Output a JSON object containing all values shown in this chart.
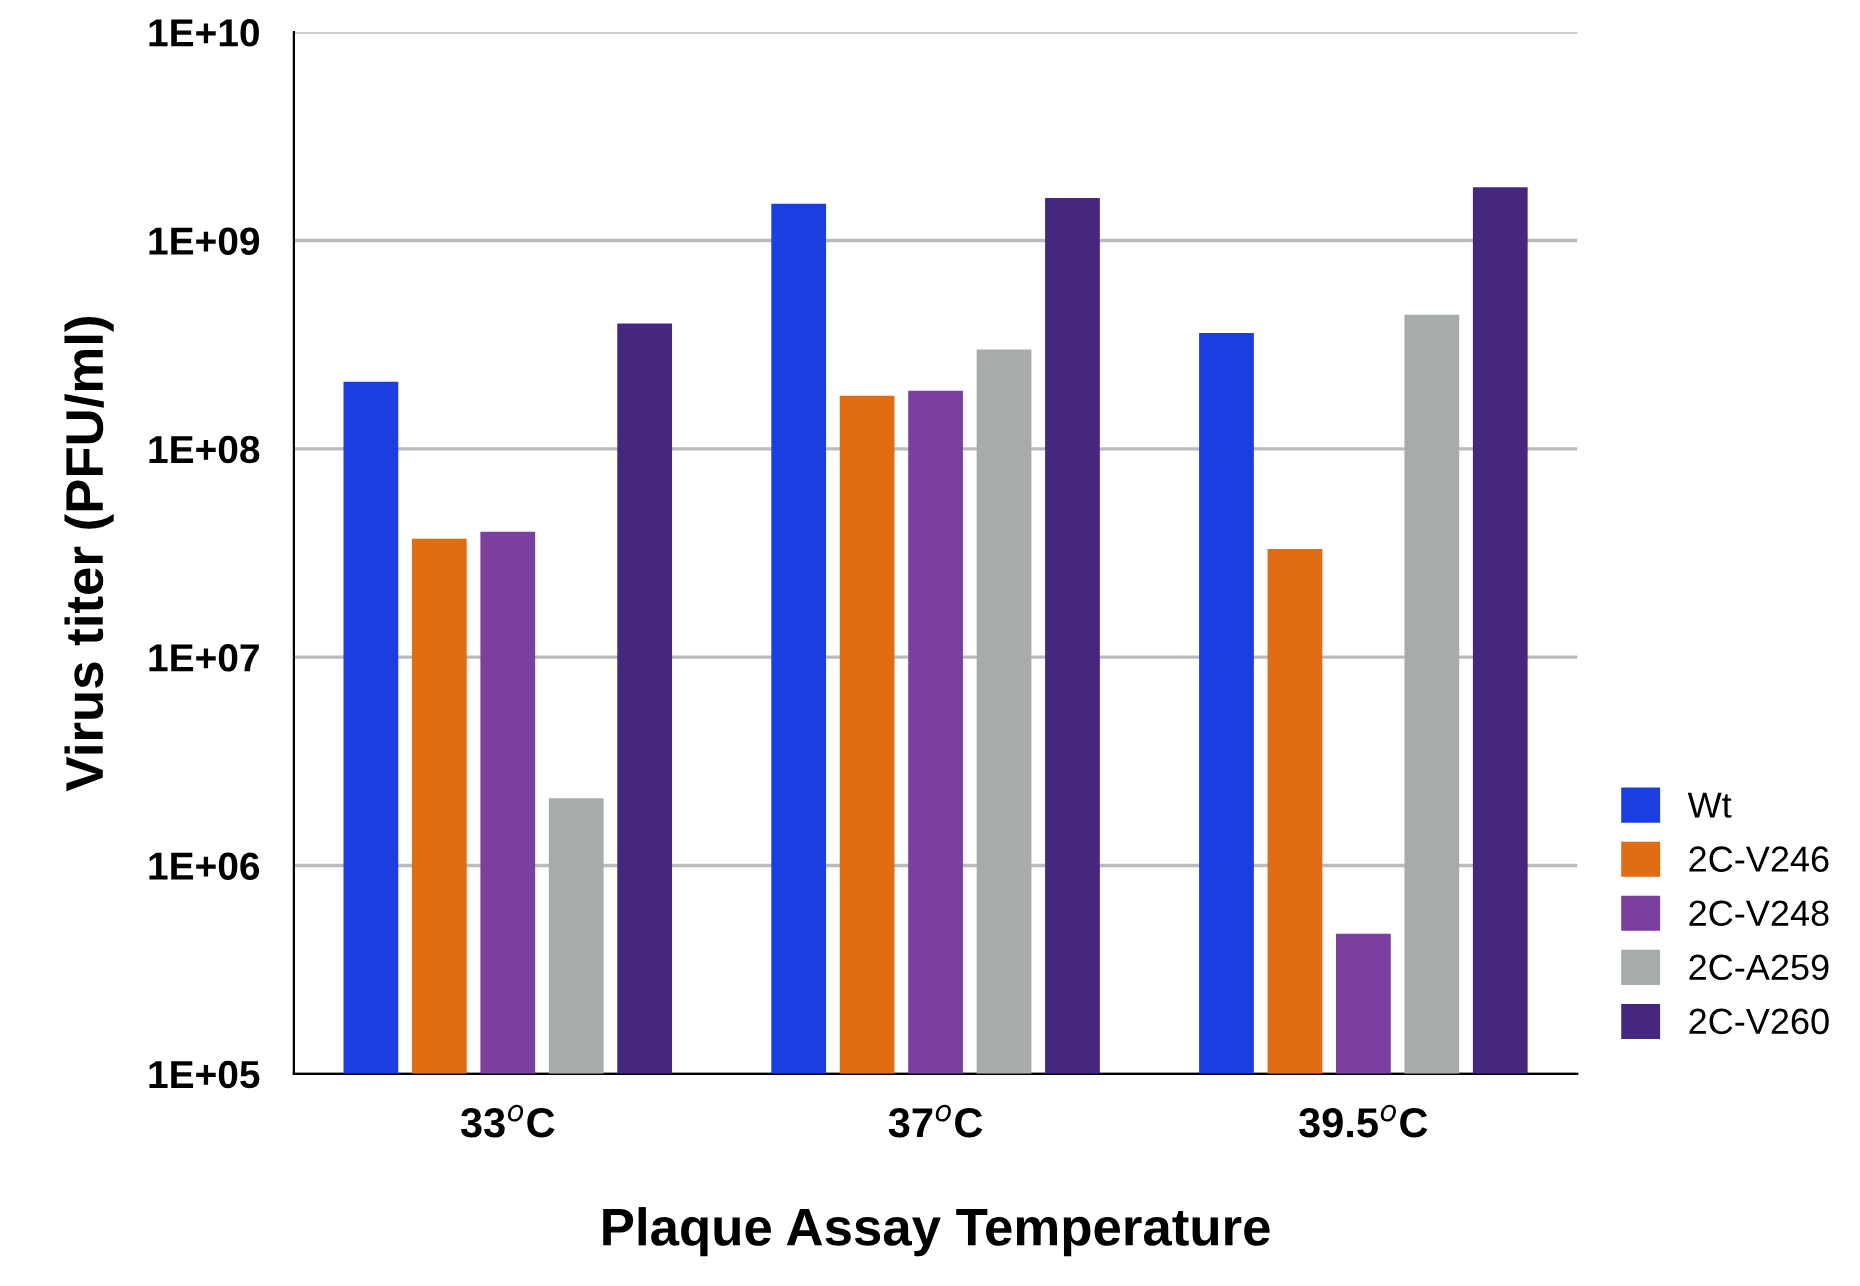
{
  "chart_data": {
    "type": "bar",
    "xlabel": "Plaque Assay Temperature",
    "ylabel": "Virus titer (PFU/ml)",
    "categories": [
      "33$^{o}$C",
      "37$^{o}$C",
      "39.5$^{o}$C"
    ],
    "series": [
      {
        "name": "Wt",
        "color": "#1a3ee0",
        "values": [
          210000000,
          1500000000,
          360000000
        ]
      },
      {
        "name": "2C-V246",
        "color": "#e06c13",
        "values": [
          37000000,
          180000000,
          33000000
        ]
      },
      {
        "name": "2C-V248",
        "color": "#7b3fa0",
        "values": [
          40000000,
          190000000,
          470000
        ]
      },
      {
        "name": "2C-A259",
        "color": "#a8abab",
        "values": [
          2100000,
          300000000,
          440000000
        ]
      },
      {
        "name": "2C-V260",
        "color": "#45277f",
        "values": [
          400000000,
          1600000000,
          1800000000
        ]
      }
    ],
    "log": "y",
    "ylim": [
      100000,
      10000000000
    ],
    "yticks": [
      {
        "value": 100000,
        "label": "1E+05"
      },
      {
        "value": 1000000,
        "label": "1E+06"
      },
      {
        "value": 10000000,
        "label": "1E+07"
      },
      {
        "value": 100000000,
        "label": "1E+08"
      },
      {
        "value": 1000000000,
        "label": "1E+09"
      },
      {
        "value": 10000000000,
        "label": "1E+10"
      }
    ],
    "grid": "y",
    "legend": "right"
  }
}
